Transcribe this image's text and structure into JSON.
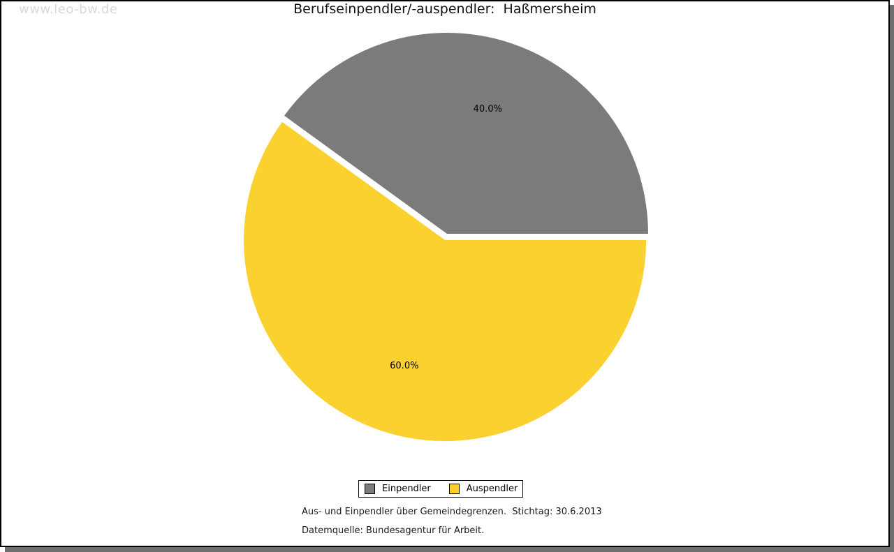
{
  "watermark": "www.leo-bw.de",
  "header": {
    "title": "Berufseinpendler/-auspendler:  Haßmersheim"
  },
  "chart_data": {
    "type": "pie",
    "title": "Berufseinpendler/-auspendler: Haßmersheim",
    "slices": [
      {
        "label": "Einpendler",
        "value_percent": 40.0,
        "display_label": "40.0%",
        "color": "#7b7b7b",
        "exploded": false
      },
      {
        "label": "Auspendler",
        "value_percent": 60.0,
        "display_label": "60.0%",
        "color": "#fbd130",
        "exploded": true
      }
    ],
    "start_angle_deg": 0,
    "direction": "counterclockwise",
    "legend_position": "bottom",
    "caption": "Aus- und Einpendler über Gemeindegrenzen.  Stichtag: 30.6.2013",
    "source": "Datemquelle: Bundesagentur für Arbeit."
  },
  "legend": {
    "items": [
      {
        "label": "Einpendler",
        "color": "#7b7b7b"
      },
      {
        "label": "Auspendler",
        "color": "#fbd130"
      }
    ]
  },
  "footer": {
    "line1": "Aus- und Einpendler über Gemeindegrenzen.  Stichtag: 30.6.2013",
    "line2": "Datemquelle: Bundesagentur für Arbeit."
  }
}
